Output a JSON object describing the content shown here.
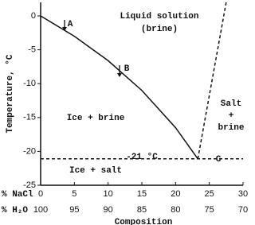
{
  "chart_data": {
    "type": "line",
    "y_label": "Temperature, °C",
    "x_label": "Composition",
    "x_row_label": "% NaCl",
    "x2_row_label": "% H₂O",
    "xlim": [
      0,
      30
    ],
    "xticks": [
      0,
      5,
      10,
      15,
      20,
      25,
      30
    ],
    "x2lim": [
      100,
      70
    ],
    "x2ticks": [
      100,
      95,
      90,
      85,
      80,
      75,
      70
    ],
    "ylim": [
      -25,
      2
    ],
    "yticks": [
      0,
      -5,
      -10,
      -15,
      -20,
      -25
    ],
    "series": [
      {
        "x": [
          0,
          5,
          10,
          15,
          20,
          23.3
        ],
        "values": [
          0,
          -3,
          -6.6,
          -11,
          -16.5,
          -21.1
        ],
        "color": "#111111",
        "dash": false
      },
      {
        "x": [
          23.3,
          27.5
        ],
        "values": [
          -21.1,
          2
        ],
        "color": "#111111",
        "dash": true
      },
      {
        "x": [
          0,
          30
        ],
        "values": [
          -21.1,
          -21.1
        ],
        "color": "#111111",
        "dash": true
      }
    ],
    "annotations": [
      "Liquid solution",
      "(brine)",
      "Ice + brine",
      "Salt",
      "+",
      "brine",
      "Ice + salt",
      "-21 °C",
      "A",
      "B",
      "C"
    ]
  }
}
